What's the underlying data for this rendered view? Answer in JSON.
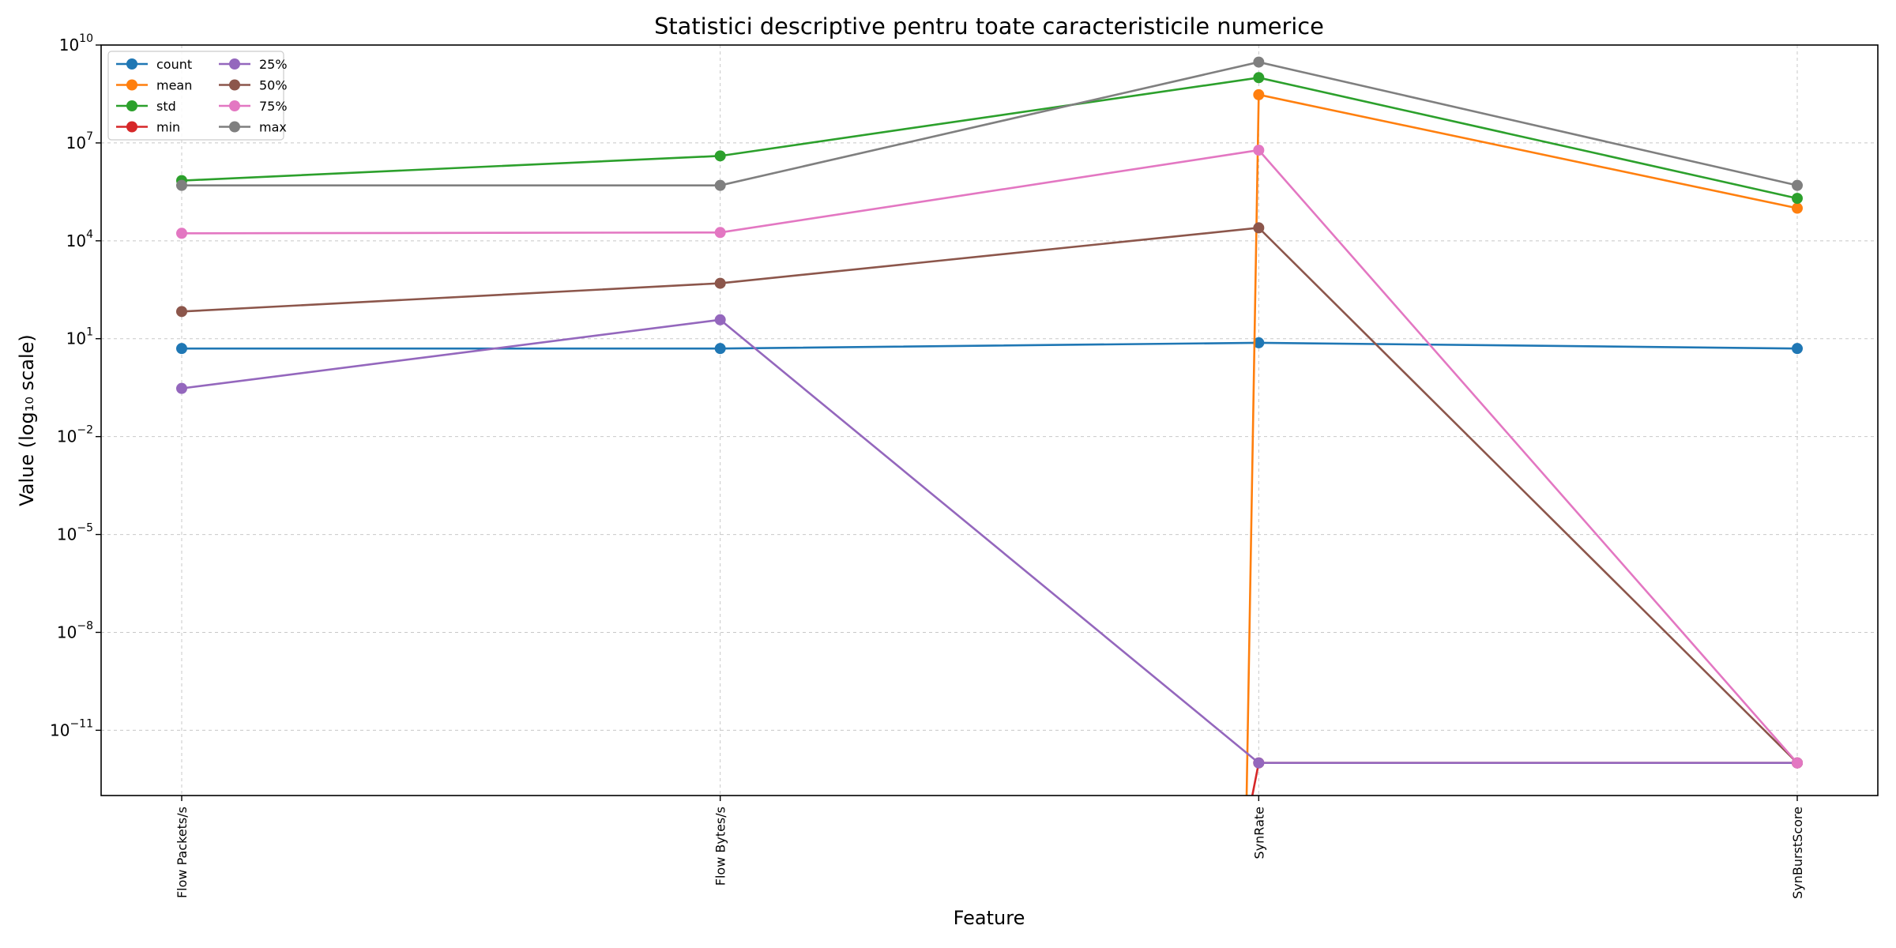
{
  "chart_data": {
    "type": "line",
    "title": "Statistici descriptive pentru toate caracteristicile numerice",
    "xlabel": "Feature",
    "ylabel": "Value (log₁₀ scale)",
    "y_scale": "log10",
    "ylim": [
      1e-13,
      10000000000.0
    ],
    "yticks": [
      {
        "exp": 10,
        "base": "10",
        "sup": "10"
      },
      {
        "exp": 7,
        "base": "10",
        "sup": "7"
      },
      {
        "exp": 4,
        "base": "10",
        "sup": "4"
      },
      {
        "exp": 1,
        "base": "10",
        "sup": "1"
      },
      {
        "exp": -2,
        "base": "10",
        "sup": "−2"
      },
      {
        "exp": -5,
        "base": "10",
        "sup": "−5"
      },
      {
        "exp": -8,
        "base": "10",
        "sup": "−8"
      },
      {
        "exp": -11,
        "base": "10",
        "sup": "−11"
      }
    ],
    "grid": true,
    "legend_position": "upper-left",
    "categories": [
      "Flow Packets/s",
      "Flow Bytes/s",
      "SynRate",
      "SynBurstScore"
    ],
    "series": [
      {
        "name": "count",
        "color": "#1f77b4",
        "values": [
          5.0,
          5.0,
          7.5,
          5.0
        ]
      },
      {
        "name": "mean",
        "color": "#ff7f0e",
        "values": [
          null,
          null,
          300000000.0,
          100000.0
        ]
      },
      {
        "name": "std",
        "color": "#2ca02c",
        "values": [
          700000.0,
          4000000.0,
          1000000000.0,
          200000.0
        ]
      },
      {
        "name": "min",
        "color": "#d62728",
        "values": [
          null,
          null,
          1e-12,
          1e-12
        ]
      },
      {
        "name": "25%",
        "color": "#9467bd",
        "values": [
          0.3,
          38.0,
          1e-12,
          1e-12
        ]
      },
      {
        "name": "50%",
        "color": "#8c564b",
        "values": [
          68.0,
          500.0,
          25000.0,
          1e-12
        ]
      },
      {
        "name": "75%",
        "color": "#e377c2",
        "values": [
          17000.0,
          18000.0,
          6000000.0,
          1e-12
        ]
      },
      {
        "name": "max",
        "color": "#7f7f7f",
        "values": [
          500000.0,
          500000.0,
          3000000000.0,
          500000.0
        ]
      }
    ]
  }
}
